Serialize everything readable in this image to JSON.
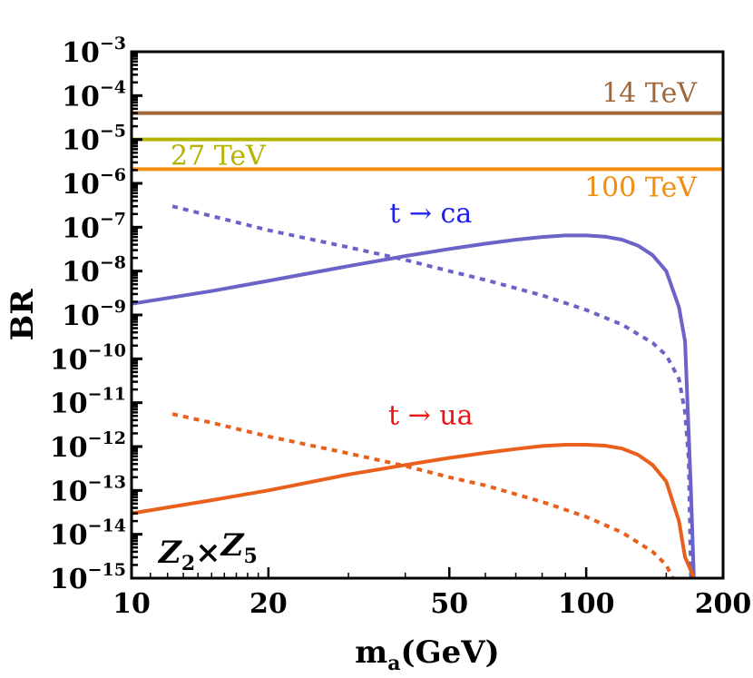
{
  "chart_data": {
    "type": "line",
    "title": "",
    "xlabel": "m",
    "xlabel_sub": "a",
    "xlabel_unit": "(GeV)",
    "ylabel": "BR",
    "x_scale": "log",
    "y_scale": "log",
    "xlim": [
      10,
      200
    ],
    "ylim": [
      1e-15,
      0.001
    ],
    "x_ticks": [
      {
        "value": 10,
        "label": "10"
      },
      {
        "value": 20,
        "label": "20"
      },
      {
        "value": 50,
        "label": "50"
      },
      {
        "value": 100,
        "label": "100"
      },
      {
        "value": 200,
        "label": "200"
      }
    ],
    "y_ticks": [
      {
        "value": -3,
        "base": "10",
        "exp": "−3"
      },
      {
        "value": -4,
        "base": "10",
        "exp": "−4"
      },
      {
        "value": -5,
        "base": "10",
        "exp": "−5"
      },
      {
        "value": -6,
        "base": "10",
        "exp": "−6"
      },
      {
        "value": -7,
        "base": "10",
        "exp": "−7"
      },
      {
        "value": -8,
        "base": "10",
        "exp": "−8"
      },
      {
        "value": -9,
        "base": "10",
        "exp": "−9"
      },
      {
        "value": -10,
        "base": "10",
        "exp": "−10"
      },
      {
        "value": -11,
        "base": "10",
        "exp": "−11"
      },
      {
        "value": -12,
        "base": "10",
        "exp": "−12"
      },
      {
        "value": -13,
        "base": "10",
        "exp": "−13"
      },
      {
        "value": -14,
        "base": "10",
        "exp": "−14"
      },
      {
        "value": -15,
        "base": "10",
        "exp": "−15"
      }
    ],
    "model_label": {
      "z1": "Z",
      "s1": "2",
      "times": "×",
      "z2": "Z",
      "s2": "5"
    },
    "hlines": [
      {
        "name": "14 TeV",
        "value": 4e-05,
        "color": "#a0673a",
        "label_x": 120
      },
      {
        "name": "27 TeV",
        "value": 1e-05,
        "color": "#b3b300",
        "label_x": 17.2
      },
      {
        "name": "100 TeV",
        "value": 2.1e-06,
        "color": "#f28c0f",
        "label_x": 120
      }
    ],
    "series": [
      {
        "name": "t → ca (solid)",
        "color": "#6b63c7",
        "dash": "none",
        "x": [
          10,
          15,
          20,
          30,
          40,
          50,
          60,
          70,
          80,
          90,
          100,
          110,
          120,
          130,
          140,
          150,
          160,
          165,
          170,
          172.5
        ],
        "y": [
          1.8e-09,
          3.5e-09,
          6e-09,
          1.3e-08,
          2.2e-08,
          3.2e-08,
          4.2e-08,
          5.2e-08,
          6e-08,
          6.5e-08,
          6.5e-08,
          6.1e-08,
          5.2e-08,
          3.8e-08,
          2.3e-08,
          1e-08,
          1.5e-09,
          2.5e-10,
          1e-13,
          1e-15
        ]
      },
      {
        "name": "t → ca (dashed)",
        "color": "#6b63c7",
        "dash": "6,6",
        "x": [
          12.3,
          15,
          20,
          30,
          40,
          50,
          60,
          80,
          100,
          120,
          140,
          150,
          160,
          165,
          168,
          170
        ],
        "y": [
          3e-07,
          1.8e-07,
          8.5e-08,
          3.5e-08,
          1.8e-08,
          1e-08,
          6.3e-09,
          2.8e-09,
          1.3e-09,
          6e-10,
          2.3e-10,
          1.2e-10,
          3.5e-11,
          6e-12,
          5e-13,
          1e-15
        ]
      },
      {
        "name": "t → ua (solid)",
        "color": "#e8601c",
        "dash": "none",
        "x": [
          10,
          15,
          20,
          30,
          40,
          50,
          60,
          70,
          80,
          90,
          100,
          110,
          120,
          130,
          140,
          150,
          160,
          165,
          170,
          172.5
        ],
        "y": [
          3e-14,
          6e-14,
          1e-13,
          2.3e-13,
          3.8e-13,
          5.5e-13,
          7.2e-13,
          8.8e-13,
          1.03e-12,
          1.1e-12,
          1.1e-12,
          1.05e-12,
          9e-13,
          6.5e-13,
          3.8e-13,
          1.6e-13,
          2e-14,
          3e-15,
          1.5e-15,
          1e-15
        ]
      },
      {
        "name": "t → ua (dashed)",
        "color": "#e8601c",
        "dash": "6,6",
        "x": [
          12.3,
          15,
          20,
          30,
          40,
          50,
          60,
          80,
          100,
          120,
          140,
          150,
          155
        ],
        "y": [
          5.5e-12,
          3.5e-12,
          1.7e-12,
          7e-13,
          3.6e-13,
          2e-13,
          1.3e-13,
          5.5e-14,
          2.5e-14,
          1.1e-14,
          4e-15,
          2e-15,
          1e-15
        ]
      }
    ],
    "annotations": [
      {
        "text": "t → ca",
        "x": 45.5,
        "y": 1.3e-07,
        "color": "#1f1ff0"
      },
      {
        "text": "t → ua",
        "x": 45.5,
        "y": 3.2e-12,
        "color": "#ee1111"
      }
    ]
  }
}
